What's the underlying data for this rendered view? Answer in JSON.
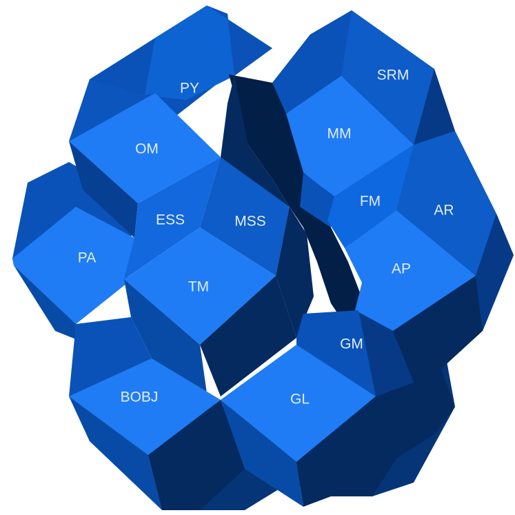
{
  "diagram": {
    "colors": {
      "face_top": "#1f7cf5",
      "face_right": "#0d5cc7",
      "face_left": "#084ba7",
      "side_dark": "#063a87",
      "shadow": "#042a60",
      "deep_shadow": "#021f47",
      "label": "#e4ecf8"
    },
    "modules": [
      {
        "id": "py",
        "label": "PY"
      },
      {
        "id": "srm",
        "label": "SRM"
      },
      {
        "id": "om",
        "label": "OM"
      },
      {
        "id": "mm",
        "label": "MM"
      },
      {
        "id": "ess",
        "label": "ESS"
      },
      {
        "id": "mss",
        "label": "MSS"
      },
      {
        "id": "fm",
        "label": "FM"
      },
      {
        "id": "ar",
        "label": "AR"
      },
      {
        "id": "pa",
        "label": "PA"
      },
      {
        "id": "tm",
        "label": "TM"
      },
      {
        "id": "ap",
        "label": "AP"
      },
      {
        "id": "gm",
        "label": "GM"
      },
      {
        "id": "bobj",
        "label": "BOBJ"
      },
      {
        "id": "gl",
        "label": "GL"
      }
    ]
  }
}
